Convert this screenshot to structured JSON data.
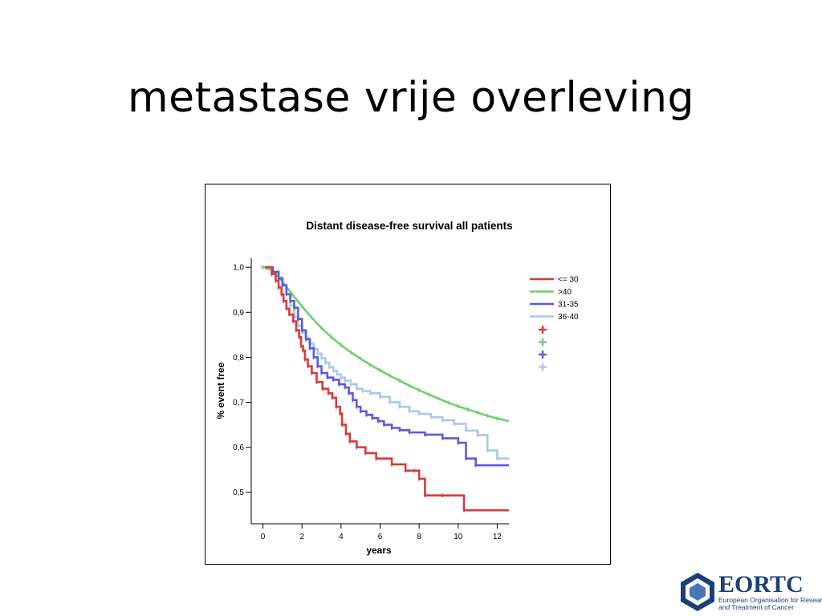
{
  "slide": {
    "title": "metastase vrije overleving"
  },
  "logo": {
    "name": "EORTC",
    "subtitle_line1": "European Organisation for Research",
    "subtitle_line2": "and Treatment of Cancer",
    "color": "#1b3f7a"
  },
  "chart_data": {
    "type": "line",
    "title": "Distant disease-free survival all patients",
    "xlabel": "years",
    "ylabel": "% event free",
    "xlim": [
      -0.6,
      12.6
    ],
    "ylim": [
      0.43,
      1.02
    ],
    "x_ticks": [
      0,
      2,
      4,
      6,
      8,
      10,
      12
    ],
    "x_tick_labels": [
      "0",
      "2",
      "4",
      "6",
      "8",
      "10",
      "12"
    ],
    "y_ticks": [
      0.5,
      0.6,
      0.7,
      0.8,
      0.9,
      1.0
    ],
    "y_tick_labels": [
      "0,5",
      "0,6",
      "0,7",
      "0,8",
      "0,9",
      "1,0"
    ],
    "grid": false,
    "legend_placement": "right",
    "series": [
      {
        "name": "<= 30",
        "color": "#d83a3a",
        "step": true,
        "x": [
          0,
          0.45,
          0.65,
          0.8,
          0.95,
          1.05,
          1.2,
          1.35,
          1.55,
          1.7,
          1.85,
          1.95,
          2.05,
          2.15,
          2.3,
          2.5,
          2.75,
          3.05,
          3.35,
          3.55,
          3.75,
          3.95,
          4.05,
          4.25,
          4.45,
          4.8,
          5.25,
          5.8,
          6.6,
          7.3,
          7.75,
          8.0,
          8.3,
          9.2,
          10.3,
          12.6
        ],
        "y": [
          1.0,
          0.985,
          0.97,
          0.955,
          0.94,
          0.925,
          0.908,
          0.895,
          0.88,
          0.86,
          0.845,
          0.825,
          0.815,
          0.795,
          0.78,
          0.765,
          0.745,
          0.73,
          0.72,
          0.71,
          0.69,
          0.675,
          0.65,
          0.63,
          0.613,
          0.6,
          0.587,
          0.575,
          0.562,
          0.548,
          0.548,
          0.53,
          0.493,
          0.493,
          0.46,
          0.46
        ]
      },
      {
        "name": ">40",
        "color": "#6fcf6f",
        "step": false,
        "x": [
          0,
          0.5,
          1.0,
          1.5,
          2.0,
          2.5,
          3.0,
          3.5,
          4.0,
          4.5,
          5.0,
          5.5,
          6.0,
          6.5,
          7.0,
          7.5,
          8.0,
          8.5,
          9.0,
          9.5,
          10.0,
          10.5,
          11.0,
          11.5,
          12.0,
          12.6
        ],
        "y": [
          1.0,
          0.993,
          0.968,
          0.94,
          0.913,
          0.888,
          0.865,
          0.845,
          0.827,
          0.811,
          0.797,
          0.783,
          0.771,
          0.759,
          0.748,
          0.737,
          0.727,
          0.717,
          0.708,
          0.699,
          0.691,
          0.684,
          0.677,
          0.67,
          0.664,
          0.658
        ]
      },
      {
        "name": "31-35",
        "color": "#5b5be0",
        "step": true,
        "x": [
          0,
          0.5,
          0.8,
          1.0,
          1.2,
          1.4,
          1.6,
          1.8,
          2.0,
          2.2,
          2.4,
          2.6,
          2.8,
          3.0,
          3.3,
          3.6,
          3.9,
          4.2,
          4.4,
          4.6,
          4.8,
          5.0,
          5.3,
          5.6,
          5.9,
          6.2,
          6.6,
          7.0,
          7.5,
          8.3,
          9.2,
          10.0,
          10.4,
          10.9,
          12.6
        ],
        "y": [
          1.0,
          0.99,
          0.975,
          0.96,
          0.94,
          0.925,
          0.91,
          0.885,
          0.86,
          0.84,
          0.82,
          0.8,
          0.78,
          0.765,
          0.755,
          0.75,
          0.74,
          0.733,
          0.72,
          0.705,
          0.69,
          0.68,
          0.672,
          0.665,
          0.658,
          0.65,
          0.643,
          0.638,
          0.633,
          0.628,
          0.62,
          0.61,
          0.575,
          0.56,
          0.56
        ]
      },
      {
        "name": "36-40",
        "color": "#a8c8ec",
        "step": true,
        "x": [
          0,
          0.5,
          0.8,
          1.0,
          1.2,
          1.4,
          1.6,
          1.8,
          2.0,
          2.2,
          2.4,
          2.6,
          2.8,
          3.0,
          3.2,
          3.4,
          3.6,
          3.8,
          4.0,
          4.2,
          4.5,
          4.8,
          5.1,
          5.5,
          6.0,
          6.5,
          7.0,
          7.5,
          8.0,
          8.6,
          9.2,
          9.8,
          10.4,
          11.0,
          11.5,
          12.0,
          12.6
        ],
        "y": [
          1.0,
          0.99,
          0.978,
          0.96,
          0.94,
          0.915,
          0.89,
          0.87,
          0.855,
          0.842,
          0.83,
          0.818,
          0.808,
          0.798,
          0.788,
          0.778,
          0.77,
          0.762,
          0.755,
          0.748,
          0.74,
          0.73,
          0.725,
          0.72,
          0.712,
          0.7,
          0.69,
          0.68,
          0.674,
          0.667,
          0.66,
          0.652,
          0.637,
          0.627,
          0.593,
          0.575,
          0.575
        ]
      }
    ]
  }
}
